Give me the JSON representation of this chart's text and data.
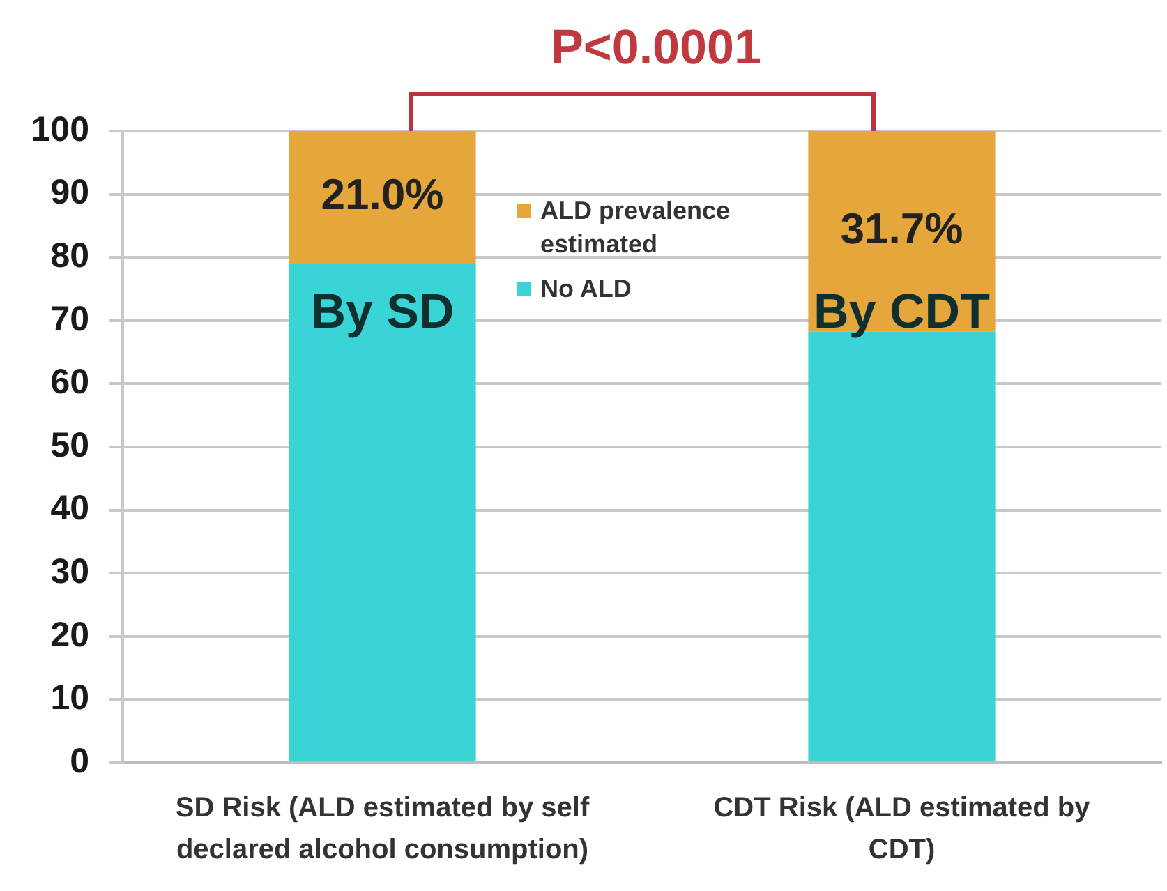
{
  "chart_data": {
    "type": "bar",
    "stacked": true,
    "categories": [
      "SD Risk (ALD estimated by self declared alcohol consumption)",
      "CDT Risk (ALD estimated by CDT)"
    ],
    "series": [
      {
        "name": "No ALD",
        "color": "#3ad3d6",
        "values": [
          79.0,
          68.3
        ]
      },
      {
        "name": "ALD prevalence estimated",
        "color": "#e5a63c",
        "values": [
          21.0,
          31.7
        ],
        "value_labels": [
          "21.0%",
          "31.7%"
        ]
      }
    ],
    "ylim": [
      0,
      100
    ],
    "yticks": [
      0,
      10,
      20,
      30,
      40,
      50,
      60,
      70,
      80,
      90,
      100
    ],
    "grid": "y",
    "legend": "top",
    "annotations": [
      "P<0.0001",
      "By SD",
      "By CDT"
    ]
  }
}
